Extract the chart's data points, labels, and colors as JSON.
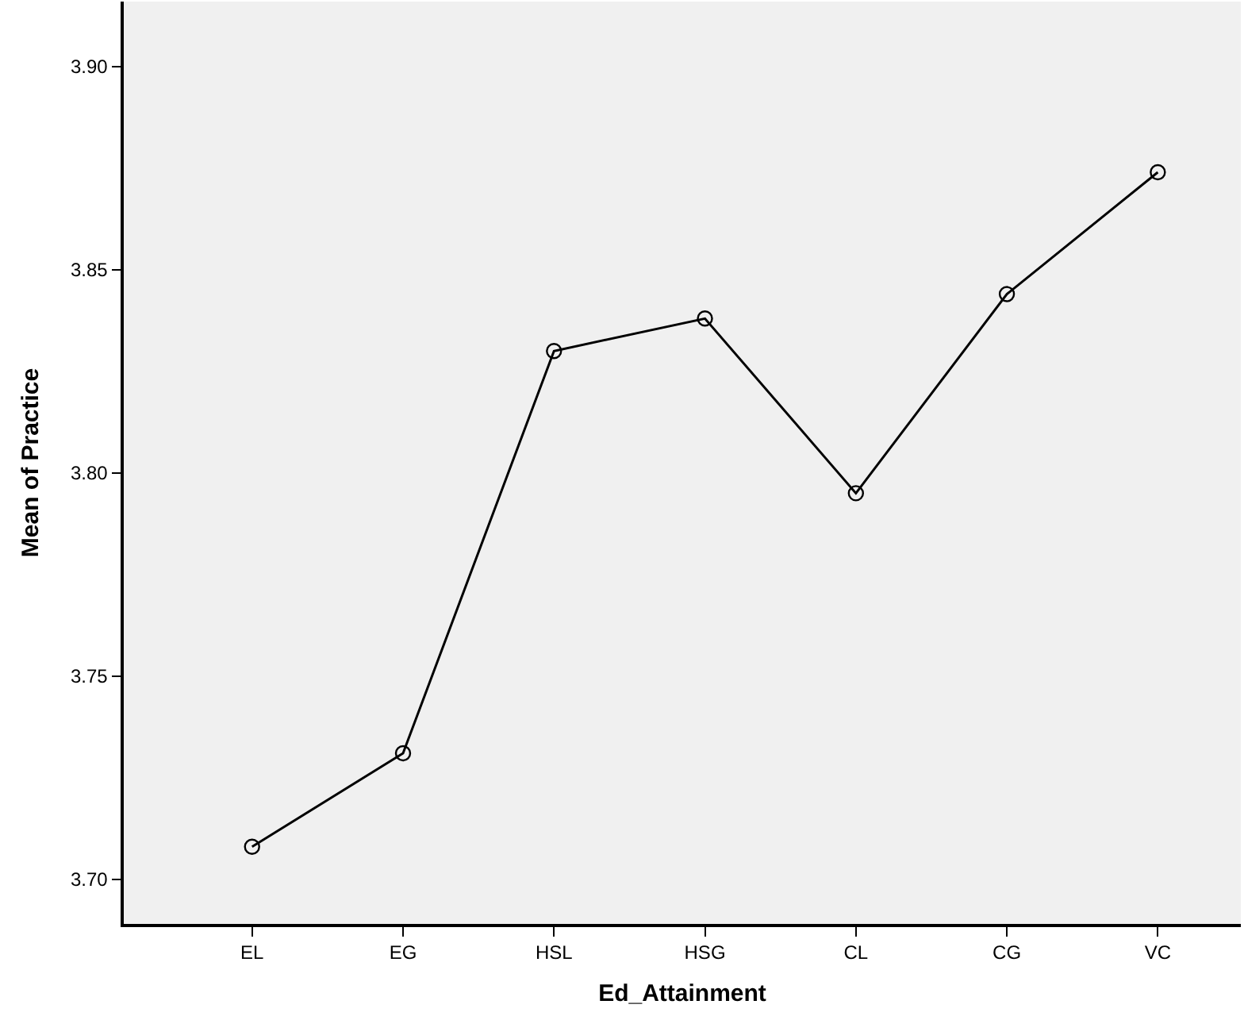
{
  "chart_data": {
    "type": "line",
    "xlabel": "Ed_Attainment",
    "ylabel": "Mean of Practice",
    "categories": [
      "EL",
      "EG",
      "HSL",
      "HSG",
      "CL",
      "CG",
      "VC"
    ],
    "series": [
      {
        "color": "#000000",
        "values": [
          3.708,
          3.731,
          3.83,
          3.838,
          3.795,
          3.844,
          3.874
        ]
      }
    ],
    "ylim": [
      3.689,
      3.916
    ],
    "yticks": [
      {
        "value": 3.7,
        "label": "3.70"
      },
      {
        "value": 3.75,
        "label": "3.75"
      },
      {
        "value": 3.8,
        "label": "3.80"
      },
      3.85,
      {
        "value": 3.9,
        "label": "3.90"
      }
    ],
    "grid": false,
    "legend": false,
    "marker": "circle",
    "line_style": "solid"
  }
}
